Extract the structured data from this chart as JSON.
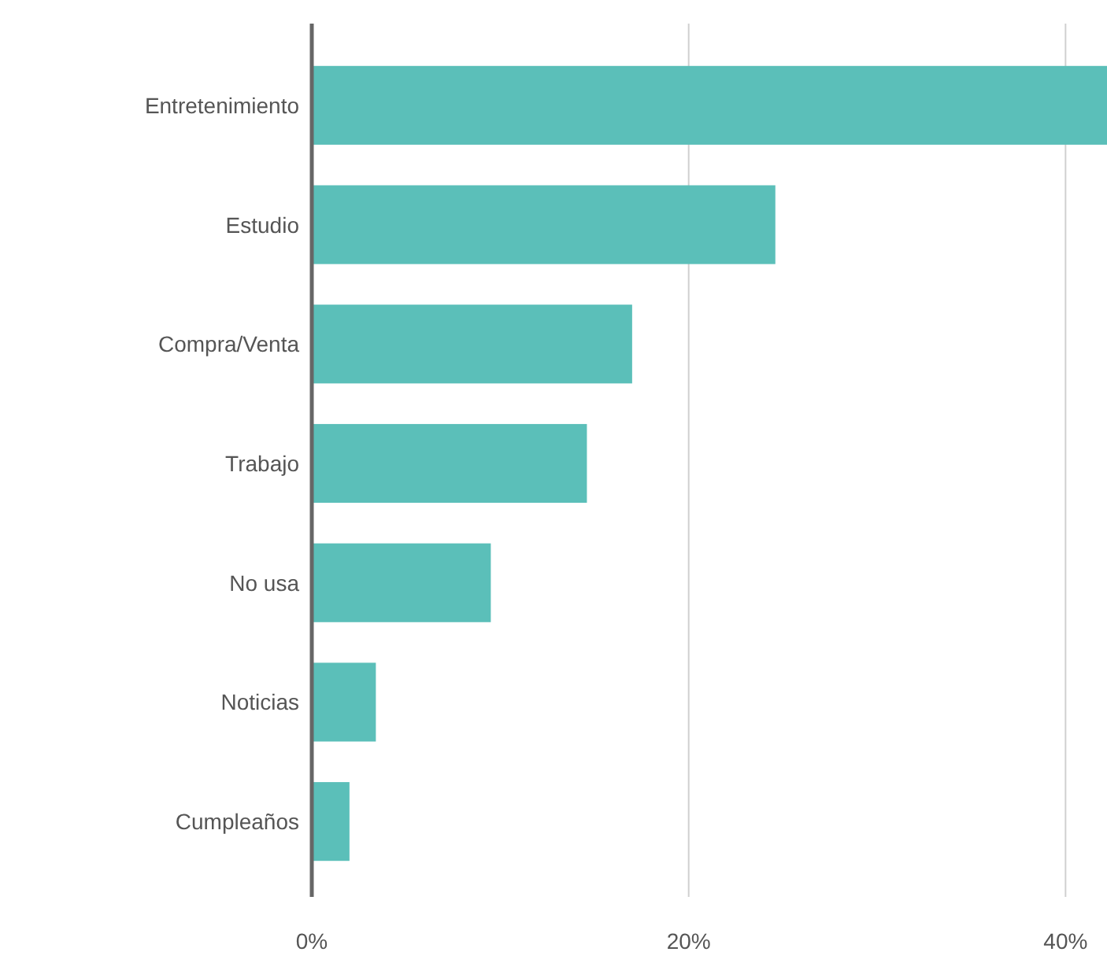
{
  "chart_data": {
    "type": "bar",
    "orientation": "horizontal",
    "categories": [
      "Entretenimiento",
      "Estudio",
      "Compra/Venta",
      "Trabajo",
      "No usa",
      "Noticias",
      "Cumpleaños"
    ],
    "values": [
      42.2,
      24.6,
      17.0,
      14.6,
      9.5,
      3.4,
      2.0
    ],
    "color": "#5bbfb9",
    "xlim": [
      0,
      42.2
    ],
    "xticks": [
      {
        "value": 0,
        "label": "0%"
      },
      {
        "value": 20,
        "label": "20%"
      },
      {
        "value": 40,
        "label": "40%"
      }
    ],
    "grid": "x"
  }
}
